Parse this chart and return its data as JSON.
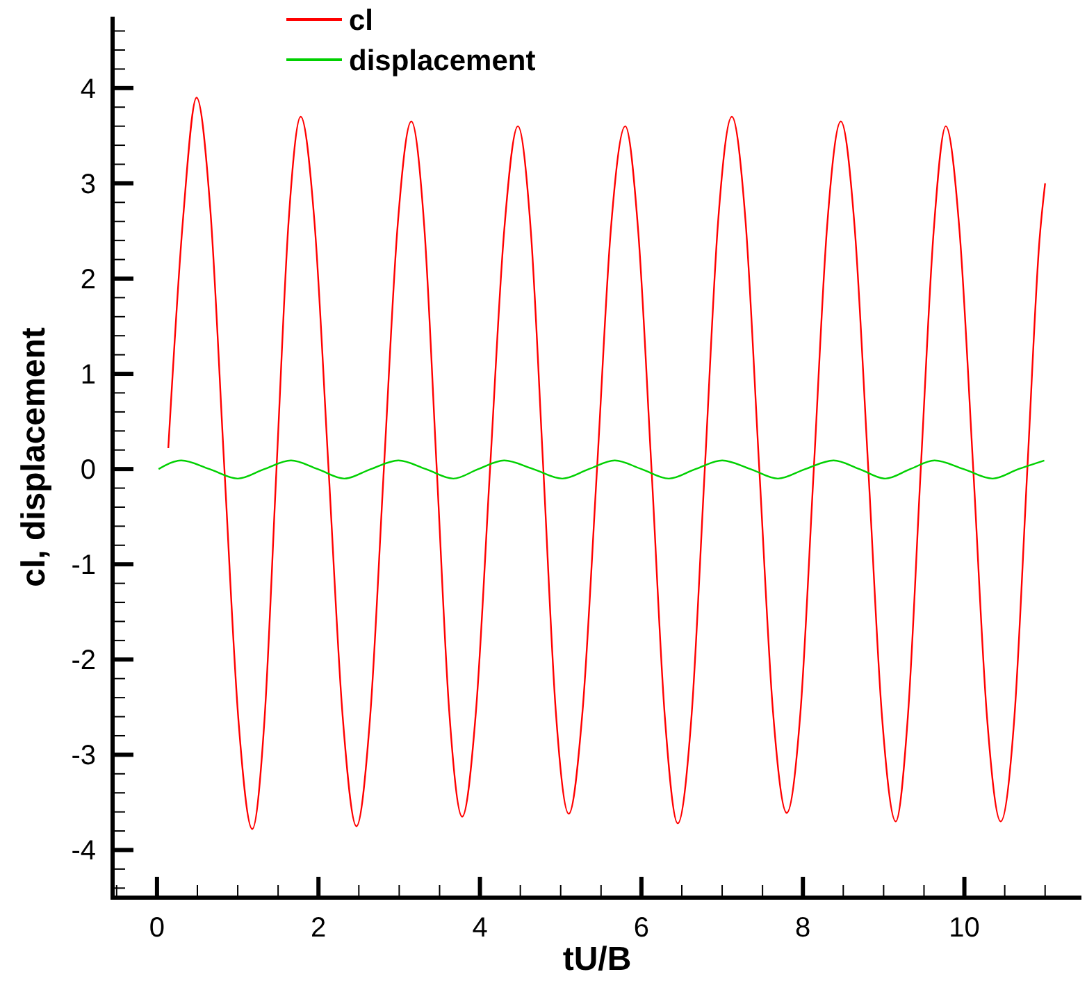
{
  "chart_data": {
    "type": "line",
    "xlabel": "tU/B",
    "ylabel": "cl, displacement",
    "legend": "top left",
    "grid": false,
    "marker": "none",
    "line_style": "solid",
    "xlim": [
      -0.55,
      11.45
    ],
    "ylim": [
      -4.5,
      4.75
    ],
    "xticks": [
      {
        "value": -0.5,
        "label": null
      },
      0,
      {
        "value": 0.5,
        "label": null
      },
      {
        "value": 1,
        "label": null
      },
      {
        "value": 1.5,
        "label": null
      },
      2,
      {
        "value": 2.5,
        "label": null
      },
      {
        "value": 3,
        "label": null
      },
      {
        "value": 3.5,
        "label": null
      },
      4,
      {
        "value": 4.5,
        "label": null
      },
      {
        "value": 5,
        "label": null
      },
      {
        "value": 5.5,
        "label": null
      },
      6,
      {
        "value": 6.5,
        "label": null
      },
      {
        "value": 7,
        "label": null
      },
      {
        "value": 7.5,
        "label": null
      },
      8,
      {
        "value": 8.5,
        "label": null
      },
      {
        "value": 9,
        "label": null
      },
      {
        "value": 9.5,
        "label": null
      },
      10,
      {
        "value": 10.5,
        "label": null
      },
      {
        "value": 11,
        "label": null
      }
    ],
    "yticks": [
      {
        "value": -4.4,
        "label": null
      },
      {
        "value": -4.2,
        "label": null
      },
      -4,
      {
        "value": -3.8,
        "label": null
      },
      {
        "value": -3.6,
        "label": null
      },
      {
        "value": -3.4,
        "label": null
      },
      {
        "value": -3.2,
        "label": null
      },
      -3,
      {
        "value": -2.8,
        "label": null
      },
      {
        "value": -2.6,
        "label": null
      },
      {
        "value": -2.4,
        "label": null
      },
      {
        "value": -2.2,
        "label": null
      },
      -2,
      {
        "value": -1.8,
        "label": null
      },
      {
        "value": -1.6,
        "label": null
      },
      {
        "value": -1.4,
        "label": null
      },
      {
        "value": -1.2,
        "label": null
      },
      -1,
      {
        "value": -0.8,
        "label": null
      },
      {
        "value": -0.6,
        "label": null
      },
      {
        "value": -0.4,
        "label": null
      },
      {
        "value": -0.2,
        "label": null
      },
      0,
      {
        "value": 0.2,
        "label": null
      },
      {
        "value": 0.4,
        "label": null
      },
      {
        "value": 0.6,
        "label": null
      },
      {
        "value": 0.8,
        "label": null
      },
      1,
      {
        "value": 1.2,
        "label": null
      },
      {
        "value": 1.4,
        "label": null
      },
      {
        "value": 1.6,
        "label": null
      },
      {
        "value": 1.8,
        "label": null
      },
      2,
      {
        "value": 2.2,
        "label": null
      },
      {
        "value": 2.4,
        "label": null
      },
      {
        "value": 2.6,
        "label": null
      },
      {
        "value": 2.8,
        "label": null
      },
      3,
      {
        "value": 3.2,
        "label": null
      },
      {
        "value": 3.4,
        "label": null
      },
      {
        "value": 3.6,
        "label": null
      },
      {
        "value": 3.8,
        "label": null
      },
      4,
      {
        "value": 4.2,
        "label": null
      },
      {
        "value": 4.4,
        "label": null
      },
      {
        "value": 4.6,
        "label": null
      }
    ],
    "series": [
      {
        "name": "cl",
        "color": "#ff0000",
        "x": [
          0.14,
          0.32,
          0.49,
          0.66,
          0.835,
          1.01,
          1.18,
          1.33,
          1.48,
          1.63,
          1.78,
          1.95,
          2.125,
          2.3,
          2.47,
          2.64,
          2.81,
          2.98,
          3.15,
          3.31,
          3.465,
          3.62,
          3.78,
          3.95,
          4.125,
          4.3,
          4.47,
          4.63,
          4.785,
          4.94,
          5.1,
          5.27,
          5.45,
          5.62,
          5.8,
          5.96,
          6.125,
          6.29,
          6.45,
          6.62,
          6.785,
          6.95,
          7.12,
          7.29,
          7.46,
          7.63,
          7.8,
          7.97,
          8.135,
          8.3,
          8.47,
          8.64,
          8.81,
          8.98,
          9.15,
          9.3,
          9.46,
          9.62,
          9.77,
          9.94,
          10.11,
          10.28,
          10.45,
          10.62,
          10.78,
          10.93,
          11.0
        ],
        "values": [
          0.22,
          2.6,
          3.9,
          2.73,
          0,
          -2.65,
          -3.78,
          -2.65,
          0,
          2.6,
          3.7,
          2.6,
          0,
          -2.6,
          -3.75,
          -2.6,
          0,
          2.55,
          3.65,
          2.55,
          0,
          -2.55,
          -3.65,
          -2.55,
          0,
          2.5,
          3.6,
          2.5,
          0,
          -2.55,
          -3.62,
          -2.55,
          0,
          2.5,
          3.6,
          2.5,
          0,
          -2.6,
          -3.72,
          -2.6,
          0,
          2.6,
          3.7,
          2.6,
          0,
          -2.55,
          -3.61,
          -2.55,
          0,
          2.55,
          3.65,
          2.55,
          0,
          -2.6,
          -3.7,
          -2.6,
          0,
          2.5,
          3.6,
          2.5,
          0,
          -2.6,
          -3.7,
          -2.6,
          0,
          2.4,
          3.0
        ]
      },
      {
        "name": "displacement",
        "color": "#00d000",
        "x": [
          0.02,
          0.3,
          0.65,
          1.0,
          1.33,
          1.66,
          1.99,
          2.32,
          2.65,
          2.99,
          3.33,
          3.67,
          3.98,
          4.3,
          4.66,
          5.02,
          5.35,
          5.67,
          6.0,
          6.34,
          6.67,
          7.0,
          7.35,
          7.69,
          8.03,
          8.38,
          8.7,
          9.02,
          9.33,
          9.63,
          9.99,
          10.35,
          10.67,
          10.99
        ],
        "values": [
          0,
          0.09,
          0,
          -0.1,
          0,
          0.09,
          0,
          -0.1,
          0,
          0.09,
          0,
          -0.1,
          0,
          0.09,
          0,
          -0.1,
          0,
          0.09,
          0,
          -0.1,
          0,
          0.09,
          0,
          -0.1,
          0,
          0.09,
          0,
          -0.1,
          0,
          0.09,
          0,
          -0.1,
          0,
          0.09
        ]
      }
    ]
  }
}
